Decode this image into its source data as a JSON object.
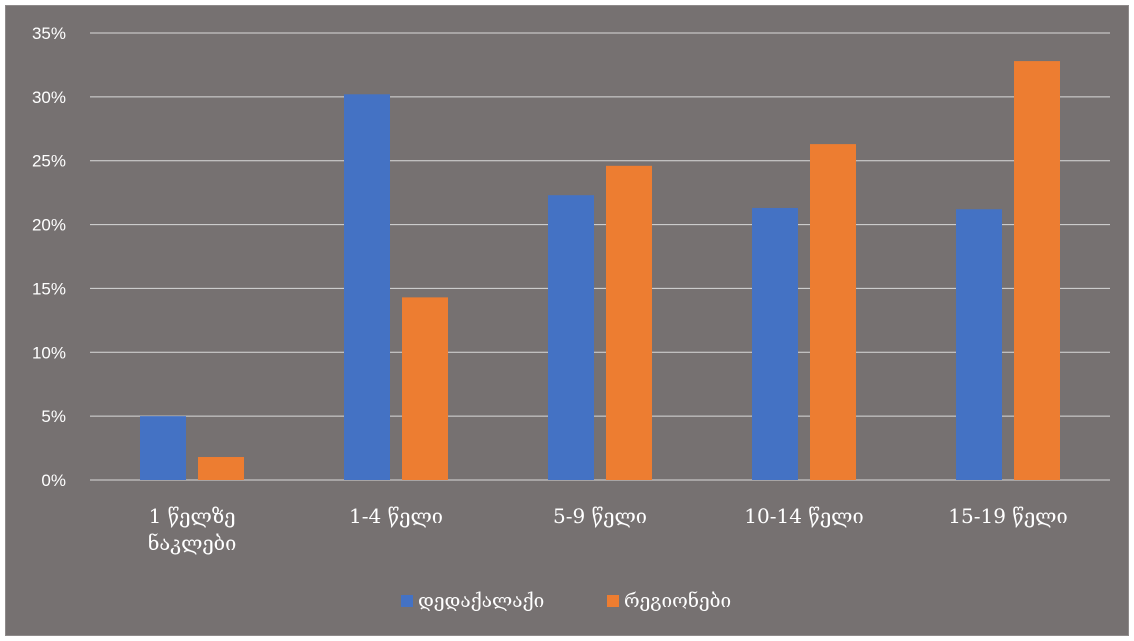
{
  "chart_data": {
    "type": "bar",
    "title": "",
    "xlabel": "",
    "ylabel": "",
    "categories": [
      "1 წელზე ნაკლები",
      "1-4 წელი",
      "5-9 წელი",
      "10-14 წელი",
      "15-19 წელი"
    ],
    "category_lines": [
      [
        "1 წელზე",
        "ნაკლები"
      ],
      [
        "1-4 წელი"
      ],
      [
        "5-9 წელი"
      ],
      [
        "10-14 წელი"
      ],
      [
        "15-19 წელი"
      ]
    ],
    "series": [
      {
        "name": "დედაქალაქი",
        "color": "#4472C4",
        "values": [
          5.0,
          30.2,
          22.3,
          21.3,
          21.2
        ]
      },
      {
        "name": "რეგიონები",
        "color": "#ED7D31",
        "values": [
          1.8,
          14.3,
          24.6,
          26.3,
          32.8
        ]
      }
    ],
    "ylim": [
      0,
      35
    ],
    "yticks": [
      0,
      5,
      10,
      15,
      20,
      25,
      30,
      35
    ],
    "ytick_labels": [
      "0%",
      "5%",
      "10%",
      "15%",
      "20%",
      "25%",
      "30%",
      "35%"
    ],
    "grid": true,
    "legend_position": "bottom",
    "background_color": "#767171",
    "gridline_color": "#D9D9D9"
  }
}
